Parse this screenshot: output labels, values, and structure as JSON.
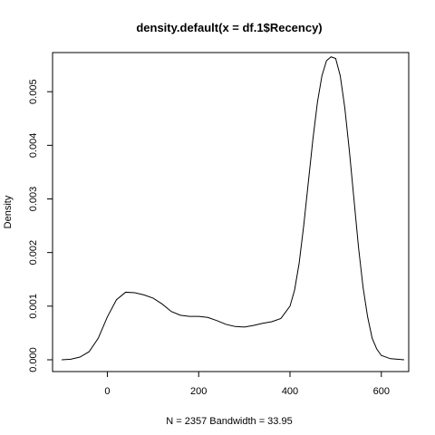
{
  "chart_data": {
    "type": "line",
    "title": "density.default(x = df.1$Recency)",
    "xlabel": "N = 2357   Bandwidth = 33.95",
    "ylabel": "Density",
    "xlim": [
      -120,
      660
    ],
    "ylim": [
      -0.00022,
      0.00573
    ],
    "x_ticks": [
      0,
      200,
      400,
      600
    ],
    "x_tick_labels": [
      "0",
      "200",
      "400",
      "600"
    ],
    "y_ticks": [
      0,
      0.001,
      0.002,
      0.003,
      0.004,
      0.005
    ],
    "y_tick_labels": [
      "0.000",
      "0.001",
      "0.002",
      "0.003",
      "0.004",
      "0.005"
    ],
    "grid": false,
    "legend": "none",
    "line_color": "#000000",
    "series": [
      {
        "x": [
          -100,
          -80,
          -60,
          -40,
          -20,
          0,
          20,
          40,
          60,
          80,
          100,
          120,
          140,
          160,
          180,
          200,
          220,
          240,
          260,
          280,
          300,
          320,
          340,
          360,
          380,
          400,
          410,
          420,
          430,
          440,
          450,
          460,
          470,
          480,
          490,
          500,
          510,
          520,
          530,
          540,
          550,
          560,
          570,
          580,
          590,
          600,
          620,
          650
        ],
        "y": [
          0.0,
          1e-05,
          5e-05,
          0.00015,
          0.0004,
          0.0008,
          0.00112,
          0.00126,
          0.00125,
          0.00121,
          0.00115,
          0.00104,
          0.0009,
          0.00083,
          0.00081,
          0.00081,
          0.00079,
          0.00073,
          0.00066,
          0.00062,
          0.00061,
          0.00064,
          0.00068,
          0.00071,
          0.00077,
          0.001,
          0.0013,
          0.0018,
          0.0025,
          0.0033,
          0.0041,
          0.0048,
          0.0053,
          0.00558,
          0.00565,
          0.00562,
          0.0053,
          0.0047,
          0.0039,
          0.003,
          0.0021,
          0.00135,
          0.0008,
          0.0004,
          0.0002,
          8e-05,
          2e-05,
          0.0
        ]
      }
    ]
  }
}
